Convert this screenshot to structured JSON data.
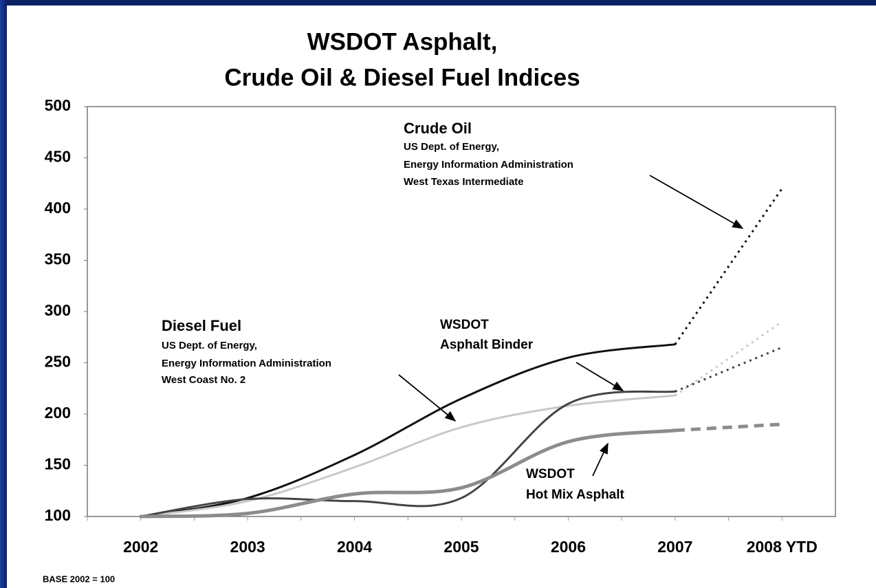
{
  "chart_data": {
    "type": "line",
    "title": [
      "WSDOT Asphalt,",
      "Crude Oil & Diesel Fuel Indices"
    ],
    "categories": [
      "2002",
      "2003",
      "2004",
      "2005",
      "2006",
      "2007",
      "2008 YTD"
    ],
    "ylim": [
      100,
      500
    ],
    "yticks": [
      100,
      150,
      200,
      250,
      300,
      350,
      400,
      450,
      500
    ],
    "series": [
      {
        "name": "Crude Oil",
        "color": "#111111",
        "width": 3,
        "dash": "dotted",
        "values": [
          100,
          118,
          160,
          215,
          255,
          268,
          420
        ]
      },
      {
        "name": "Diesel Fuel",
        "color": "#c8c8c8",
        "width": 3,
        "dash": "dotted",
        "values": [
          100,
          115,
          148,
          187,
          208,
          218,
          290
        ]
      },
      {
        "name": "WSDOT Asphalt Binder",
        "color": "#444444",
        "width": 3,
        "dash": "dotted",
        "values": [
          100,
          117,
          115,
          118,
          210,
          222,
          265
        ]
      },
      {
        "name": "WSDOT Hot Mix Asphalt",
        "color": "#8c8c8c",
        "width": 5,
        "dash": "dashed",
        "values": [
          100,
          103,
          122,
          128,
          173,
          184,
          190
        ]
      }
    ],
    "annotations": [
      [
        "Crude Oil",
        "US Dept. of Energy,",
        "Energy Information Administration",
        "West Texas Intermediate"
      ],
      [
        "Diesel Fuel",
        "US Dept. of Energy,",
        "Energy Information Administration",
        "West Coast No. 2"
      ],
      [
        "WSDOT",
        "Asphalt Binder"
      ],
      [
        "WSDOT",
        "Hot Mix Asphalt"
      ]
    ],
    "footnote": "BASE 2002 = 100"
  }
}
